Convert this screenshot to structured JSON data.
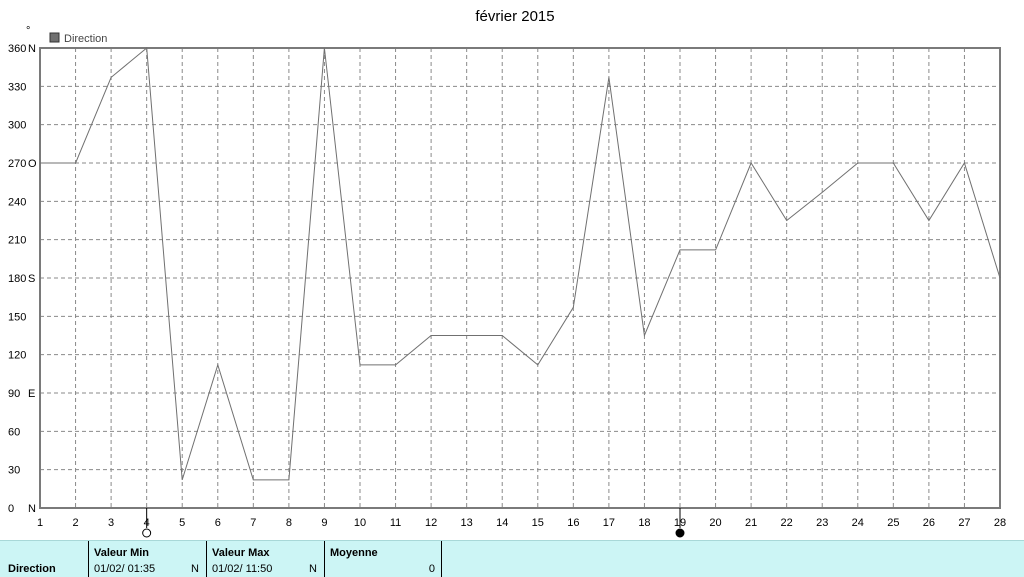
{
  "chart_data": {
    "type": "line",
    "title": "février 2015",
    "ylabel": "°",
    "legend": {
      "label": "Direction",
      "color": "#707070",
      "placement": "top-left"
    },
    "xlim": [
      1,
      28
    ],
    "ylim": [
      0,
      360
    ],
    "grid": true,
    "x_ticks": [
      1,
      2,
      3,
      4,
      5,
      6,
      7,
      8,
      9,
      10,
      11,
      12,
      13,
      14,
      15,
      16,
      17,
      18,
      19,
      20,
      21,
      22,
      23,
      24,
      25,
      26,
      27,
      28
    ],
    "y_ticks": [
      {
        "value": 0,
        "label": "0",
        "dir": "N"
      },
      {
        "value": 30,
        "label": "30",
        "dir": ""
      },
      {
        "value": 60,
        "label": "60",
        "dir": ""
      },
      {
        "value": 90,
        "label": "90",
        "dir": "E"
      },
      {
        "value": 120,
        "label": "120",
        "dir": ""
      },
      {
        "value": 150,
        "label": "150",
        "dir": ""
      },
      {
        "value": 180,
        "label": "180",
        "dir": "S"
      },
      {
        "value": 210,
        "label": "210",
        "dir": ""
      },
      {
        "value": 240,
        "label": "240",
        "dir": ""
      },
      {
        "value": 270,
        "label": "270",
        "dir": "O"
      },
      {
        "value": 300,
        "label": "300",
        "dir": ""
      },
      {
        "value": 330,
        "label": "330",
        "dir": ""
      },
      {
        "value": 360,
        "label": "360",
        "dir": "N"
      }
    ],
    "series": [
      {
        "name": "Direction",
        "points": [
          [
            1,
            270
          ],
          [
            2,
            270
          ],
          [
            3,
            337
          ],
          [
            4,
            360
          ],
          [
            5,
            22
          ],
          [
            6,
            112
          ],
          [
            7,
            22
          ],
          [
            8,
            22
          ],
          [
            9,
            360
          ],
          [
            10,
            112
          ],
          [
            11,
            112
          ],
          [
            12,
            135
          ],
          [
            13,
            135
          ],
          [
            14,
            135
          ],
          [
            15,
            112
          ],
          [
            16,
            157
          ],
          [
            17,
            337
          ],
          [
            18,
            135
          ],
          [
            19,
            202
          ],
          [
            20,
            202
          ],
          [
            21,
            270
          ],
          [
            22,
            225
          ],
          [
            23,
            247
          ],
          [
            24,
            270
          ],
          [
            25,
            270
          ],
          [
            26,
            225
          ],
          [
            27,
            270
          ],
          [
            28,
            180
          ]
        ]
      }
    ],
    "markers": [
      {
        "x": 4,
        "type": "min",
        "fill": "#ffffff"
      },
      {
        "x": 19,
        "type": "max",
        "fill": "#000000"
      }
    ]
  },
  "stats": {
    "series_name": "Direction",
    "min_header": "Valeur Min",
    "min_value": "01/02/  01:35",
    "min_unit": "N",
    "max_header": "Valeur Max",
    "max_value": "01/02/  11:50",
    "max_unit": "N",
    "avg_header": "Moyenne",
    "avg_value": "0"
  }
}
